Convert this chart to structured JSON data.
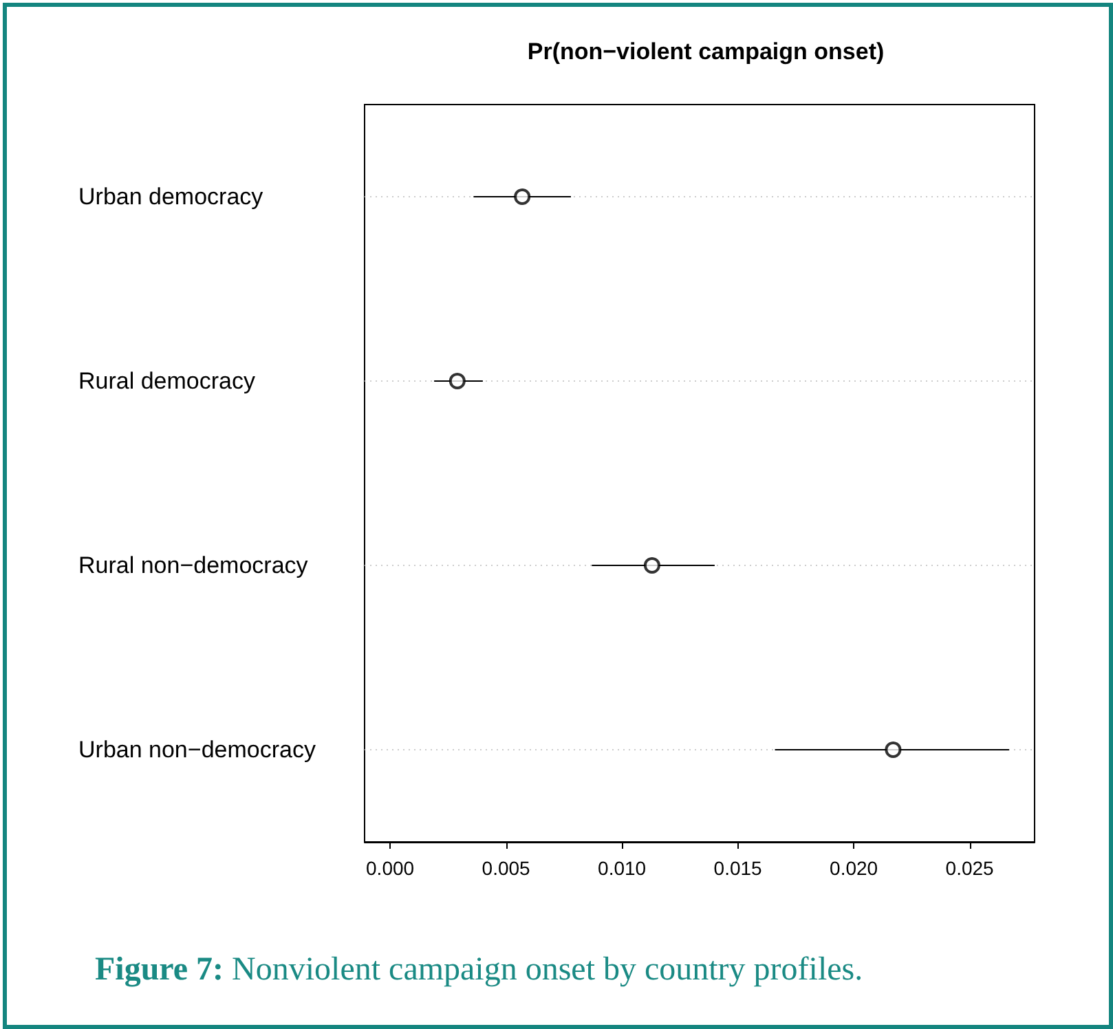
{
  "chart_data": {
    "type": "scatter",
    "orientation": "horizontal",
    "title": "Pr(non−violent campaign onset)",
    "categories": [
      "Urban democracy",
      "Rural democracy",
      "Rural non−democracy",
      "Urban non−democracy"
    ],
    "values": [
      0.0057,
      0.0029,
      0.0113,
      0.0217
    ],
    "errors": [
      [
        0.0036,
        0.0078
      ],
      [
        0.0019,
        0.004
      ],
      [
        0.0087,
        0.014
      ],
      [
        0.0166,
        0.0267
      ]
    ],
    "color": "#000000",
    "marker": "circle",
    "grid": "y",
    "xlim": [
      -0.0011,
      0.0278
    ],
    "xticks": [
      {
        "value": 0,
        "label": "0.000"
      },
      {
        "value": 0.005,
        "label": "0.005"
      },
      {
        "value": 0.01,
        "label": "0.010"
      },
      {
        "value": 0.015,
        "label": "0.015"
      },
      {
        "value": 0.02,
        "label": "0.020"
      },
      {
        "value": 0.025,
        "label": "0.025"
      }
    ],
    "annotations": [
      "Figure 7: Nonviolent campaign onset by country profiles."
    ]
  }
}
